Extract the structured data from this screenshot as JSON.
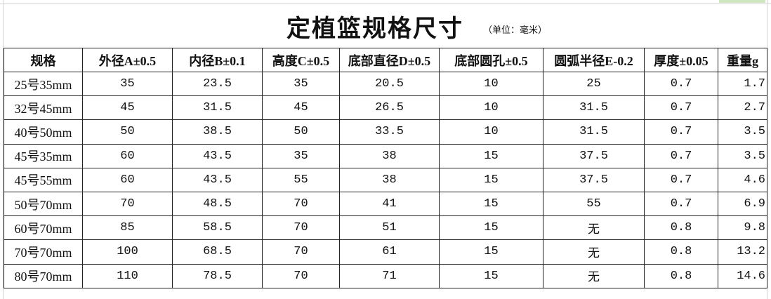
{
  "title": "定植篮规格尺寸",
  "unit_note": "（单位：毫米）",
  "table": {
    "headers": [
      "规格",
      "外径A±0.5",
      "内径B±0.1",
      "高度C±0.5",
      "底部直径D±0.5",
      "底部圆孔±0.5",
      "圆弧半径E-0.2",
      "厚度±0.05",
      "重量g"
    ],
    "rows": [
      [
        "25号35mm",
        "35",
        "23.5",
        "35",
        "20.5",
        "10",
        "25",
        "0.7",
        "1.7"
      ],
      [
        "32号45mm",
        "45",
        "31.5",
        "45",
        "26.5",
        "10",
        "31.5",
        "0.7",
        "2.7"
      ],
      [
        "40号50mm",
        "50",
        "38.5",
        "50",
        "33.5",
        "10",
        "31.5",
        "0.7",
        "3.5"
      ],
      [
        "45号35mm",
        "60",
        "43.5",
        "35",
        "38",
        "15",
        "37.5",
        "0.7",
        "3.5"
      ],
      [
        "45号55mm",
        "60",
        "43.5",
        "55",
        "38",
        "15",
        "37.5",
        "0.7",
        "4.6"
      ],
      [
        "50号70mm",
        "70",
        "48.5",
        "70",
        "41",
        "15",
        "55",
        "0.7",
        "6.9"
      ],
      [
        "60号70mm",
        "85",
        "58.5",
        "70",
        "51",
        "15",
        "无",
        "0.8",
        "9.8"
      ],
      [
        "70号70mm",
        "100",
        "68.5",
        "70",
        "61",
        "15",
        "无",
        "0.8",
        "13.2"
      ],
      [
        "80号70mm",
        "110",
        "78.5",
        "70",
        "71",
        "15",
        "无",
        "0.8",
        "14.6"
      ]
    ]
  }
}
